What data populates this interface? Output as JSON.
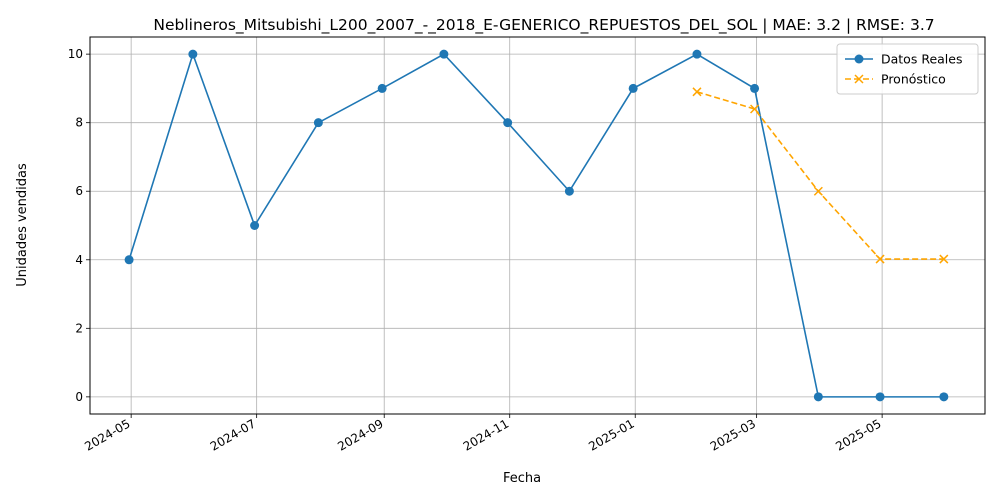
{
  "chart_data": {
    "type": "line",
    "title": "Neblineros_Mitsubishi_L200_2007_-_2018_E-GENERICO_REPUESTOS_DEL_SOL | MAE: 3.2 | RMSE: 3.7",
    "xlabel": "Fecha",
    "ylabel": "Unidades vendidas",
    "xlim": [
      "2024-04-11",
      "2025-06-20"
    ],
    "ylim": [
      -0.5,
      10.5
    ],
    "grid": true,
    "legend_position": "top-right",
    "x_ticks": [
      "2024-05",
      "2024-07",
      "2024-09",
      "2024-11",
      "2025-01",
      "2025-03",
      "2025-05"
    ],
    "y_ticks": [
      0,
      2,
      4,
      6,
      8,
      10
    ],
    "series": [
      {
        "name": "Datos Reales",
        "color": "#1f77b4",
        "marker": "circle",
        "linestyle": "solid",
        "x": [
          "2024-04-30",
          "2024-05-31",
          "2024-06-30",
          "2024-07-31",
          "2024-08-31",
          "2024-09-30",
          "2024-10-31",
          "2024-11-30",
          "2024-12-31",
          "2025-01-31",
          "2025-02-28",
          "2025-03-31",
          "2025-04-30",
          "2025-05-31"
        ],
        "values": [
          4,
          10,
          5,
          8,
          9,
          10,
          8,
          6,
          9,
          10,
          9,
          0,
          0,
          0
        ]
      },
      {
        "name": "Pronóstico",
        "color": "#ffa500",
        "marker": "x",
        "linestyle": "dashed",
        "x": [
          "2025-01-31",
          "2025-02-28",
          "2025-03-31",
          "2025-04-30",
          "2025-05-31"
        ],
        "values": [
          8.9,
          8.4,
          6.0,
          4.02,
          4.02
        ]
      }
    ]
  }
}
